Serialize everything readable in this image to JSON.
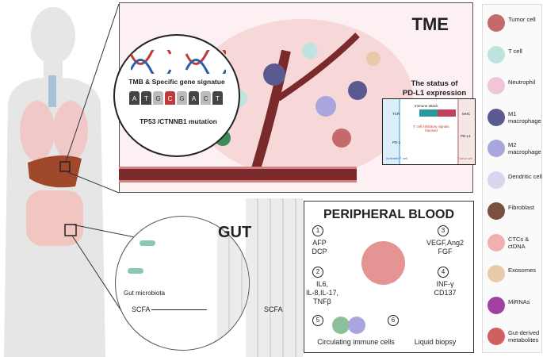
{
  "tme": {
    "title": "TME",
    "gene_box": {
      "title": "TMB & Specific gene signatue",
      "bases": [
        "A",
        "T",
        "G",
        "C",
        "G",
        "A",
        "C",
        "T"
      ],
      "mutation": "TP53 /CTNNB1 mutation"
    },
    "pdl1": {
      "title_line1": "The status of",
      "title_line2": "PD-L1 expression",
      "immune_attack": "Immune attack",
      "tcr": "TCR",
      "mhc": "MHC",
      "blocked": "T cell inhibitory signals blocked",
      "pd1": "PD-1",
      "pdl1": "PD-L1",
      "t_cell": "Activated T cell",
      "tumor_cell": "Tumor cell"
    }
  },
  "gut": {
    "title": "GUT",
    "microbiota": "Gut microbiota",
    "scfa_left": "SCFA",
    "scfa_right": "SCFA"
  },
  "peripheral_blood": {
    "title": "PERIPHERAL BLOOD",
    "items": [
      {
        "num": "1",
        "text": [
          "AFP",
          "DCP"
        ]
      },
      {
        "num": "2",
        "text": [
          "IL6,",
          "IL-8,IL-17,",
          "TNFβ"
        ]
      },
      {
        "num": "3",
        "text": [
          "VEGF,Ang2",
          "FGF"
        ]
      },
      {
        "num": "4",
        "text": [
          "INF-γ",
          "CD137"
        ]
      },
      {
        "num": "5",
        "text": [
          "Circulating immune cells"
        ]
      },
      {
        "num": "6",
        "text": [
          "Liquid biopsy"
        ]
      }
    ]
  },
  "legend": [
    {
      "label": "Tumor cell",
      "color": "#c46a6a"
    },
    {
      "label": "T cell",
      "color": "#bfe3de"
    },
    {
      "label": "Neutrophil",
      "color": "#f2c4d8"
    },
    {
      "label": "M1 macrophage",
      "color": "#5a5a90"
    },
    {
      "label": "M2 macrophage",
      "color": "#a9a6dd"
    },
    {
      "label": "Dendritic cell",
      "color": "#d8d6ee"
    },
    {
      "label": "Fibroblast",
      "color": "#7a5040"
    },
    {
      "label": "CTCs & ctDNA",
      "color": "#f0b0b0"
    },
    {
      "label": "Exosomes",
      "color": "#e8c9a8"
    },
    {
      "label": "MiRNAs",
      "color": "#a040a0"
    },
    {
      "label": "Gut-derived metabolites",
      "color": "#d06060"
    }
  ]
}
